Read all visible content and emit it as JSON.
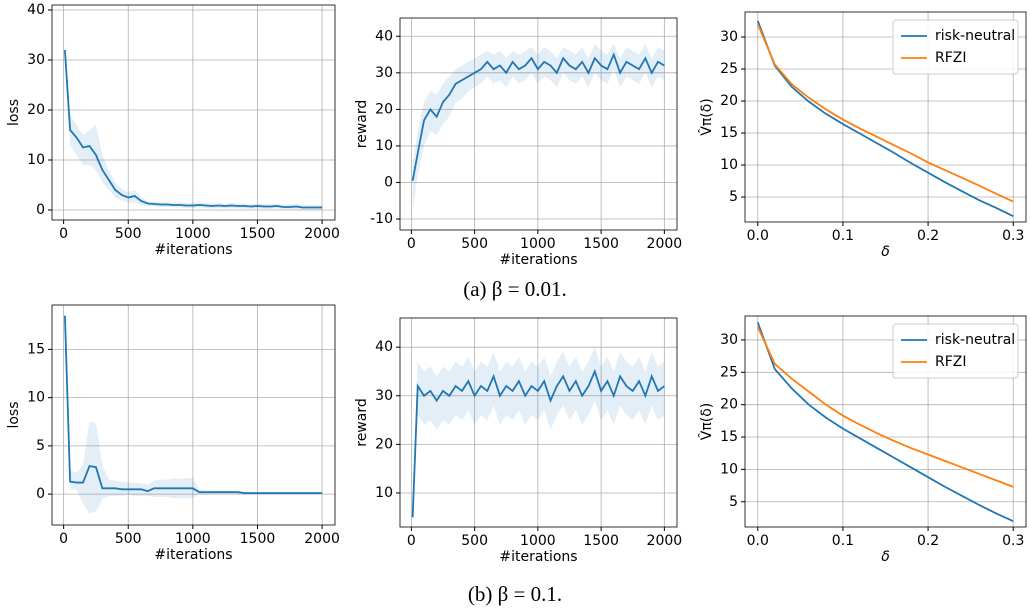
{
  "chart_data": [
    {
      "type": "line",
      "xlabel": "#iterations",
      "ylabel": "loss",
      "x": [
        10,
        50,
        100,
        150,
        200,
        250,
        300,
        350,
        400,
        450,
        500,
        550,
        600,
        650,
        700,
        750,
        800,
        850,
        900,
        950,
        1000,
        1050,
        1100,
        1150,
        1200,
        1250,
        1300,
        1350,
        1400,
        1450,
        1500,
        1550,
        1600,
        1650,
        1700,
        1750,
        1800,
        1850,
        1900,
        1950,
        2000
      ],
      "series": [
        {
          "color": "#1f77b4",
          "values": [
            32,
            16,
            14.5,
            12.5,
            12.8,
            11,
            8,
            6,
            4,
            3,
            2.5,
            2.8,
            1.8,
            1.3,
            1.2,
            1.1,
            1.1,
            1.0,
            1.0,
            0.9,
            0.9,
            1.0,
            0.9,
            0.8,
            0.9,
            0.8,
            0.9,
            0.8,
            0.8,
            0.7,
            0.8,
            0.7,
            0.7,
            0.8,
            0.6,
            0.6,
            0.7,
            0.5,
            0.5,
            0.5,
            0.5
          ],
          "lower": [
            31,
            13,
            11,
            9,
            9,
            8,
            5.5,
            4,
            2.5,
            1.8,
            1.5,
            1.5,
            1.0,
            0.8,
            0.7,
            0.6,
            0.6,
            0.5,
            0.5,
            0.4,
            0.4,
            0.5,
            0.4,
            0.3,
            0.4,
            0.3,
            0.4,
            0.3,
            0.3,
            0.2,
            0.3,
            0.2,
            0.2,
            0.3,
            0.1,
            0.1,
            0.2,
            0,
            0,
            0,
            0
          ],
          "upper": [
            33,
            19,
            17,
            15,
            16,
            17,
            11,
            8,
            5.5,
            4.2,
            3.5,
            4,
            2.6,
            1.8,
            1.7,
            1.6,
            1.6,
            1.5,
            1.5,
            1.4,
            1.4,
            1.5,
            1.4,
            1.3,
            1.4,
            1.3,
            1.4,
            1.3,
            1.3,
            1.2,
            1.3,
            1.2,
            1.2,
            1.3,
            1.1,
            1.1,
            1.2,
            1.0,
            1.0,
            1.0,
            1.0
          ]
        }
      ],
      "xlim": [
        -90,
        2100
      ],
      "ylim": [
        -2,
        41
      ],
      "xticks": [
        0,
        500,
        1000,
        1500,
        2000
      ],
      "yticks": [
        0,
        10,
        20,
        30,
        40
      ],
      "grid": true
    },
    {
      "type": "line",
      "xlabel": "#iterations",
      "ylabel": "reward",
      "x": [
        10,
        50,
        100,
        150,
        200,
        250,
        300,
        350,
        400,
        450,
        500,
        550,
        600,
        650,
        700,
        750,
        800,
        850,
        900,
        950,
        1000,
        1050,
        1100,
        1150,
        1200,
        1250,
        1300,
        1350,
        1400,
        1450,
        1500,
        1550,
        1600,
        1650,
        1700,
        1750,
        1800,
        1850,
        1900,
        1950,
        2000
      ],
      "series": [
        {
          "color": "#1f77b4",
          "values": [
            0.5,
            8,
            17,
            20,
            18,
            22,
            24,
            27,
            28,
            29,
            30,
            31,
            33,
            31,
            32,
            30,
            33,
            31,
            32,
            34,
            31,
            33,
            32,
            30,
            34,
            32,
            31,
            33,
            30,
            34,
            32,
            31,
            35,
            30,
            33,
            32,
            31,
            34,
            30,
            33,
            32
          ],
          "lower": [
            -8,
            2,
            10,
            14,
            13,
            16,
            18,
            22,
            23,
            25,
            26,
            27,
            29,
            27,
            28,
            26,
            29,
            27,
            28,
            30,
            27,
            29,
            28,
            26,
            30,
            28,
            27,
            29,
            26,
            30,
            28,
            27,
            31,
            26,
            29,
            28,
            27,
            30,
            26,
            29,
            28
          ],
          "upper": [
            5,
            14,
            22,
            25,
            24,
            27,
            29,
            31,
            32,
            33,
            34,
            35,
            36,
            35,
            36,
            34,
            36,
            35,
            36,
            37,
            35,
            37,
            36,
            34,
            37,
            36,
            35,
            37,
            34,
            38,
            36,
            35,
            38,
            34,
            37,
            36,
            35,
            38,
            34,
            37,
            36
          ]
        }
      ],
      "xlim": [
        -90,
        2100
      ],
      "ylim": [
        -13,
        45
      ],
      "xticks": [
        0,
        500,
        1000,
        1500,
        2000
      ],
      "yticks": [
        -10,
        0,
        10,
        20,
        30,
        40
      ],
      "grid": true
    },
    {
      "type": "line",
      "xlabel": "δ",
      "ylabel": "V̂π(δ)",
      "x": [
        0,
        0.02,
        0.04,
        0.06,
        0.08,
        0.1,
        0.12,
        0.14,
        0.16,
        0.18,
        0.2,
        0.22,
        0.24,
        0.26,
        0.28,
        0.3
      ],
      "series": [
        {
          "name": "risk-neutral",
          "color": "#1f77b4",
          "values": [
            32.5,
            25.5,
            22.2,
            19.9,
            18.0,
            16.4,
            14.9,
            13.4,
            11.9,
            10.3,
            8.8,
            7.3,
            5.9,
            4.5,
            3.3,
            2.0
          ]
        },
        {
          "name": "RFZI",
          "color": "#ff7f0e",
          "values": [
            32,
            25.7,
            22.6,
            20.5,
            18.7,
            17.1,
            15.7,
            14.4,
            13.1,
            11.8,
            10.4,
            9.2,
            8.0,
            6.8,
            5.5,
            4.3
          ]
        }
      ],
      "xlim": [
        -0.015,
        0.315
      ],
      "ylim": [
        1.1,
        33.9
      ],
      "xticks": [
        {
          "value": 0,
          "label": "0.0"
        },
        0.1,
        0.2,
        0.3
      ],
      "yticks": [
        5,
        10,
        15,
        20,
        25,
        30
      ],
      "grid": true,
      "legend": "upper right"
    },
    {
      "type": "line",
      "xlabel": "#iterations",
      "ylabel": "loss",
      "x": [
        10,
        50,
        100,
        150,
        200,
        250,
        300,
        350,
        400,
        450,
        500,
        550,
        600,
        650,
        700,
        750,
        800,
        850,
        900,
        950,
        1000,
        1050,
        1100,
        1150,
        1200,
        1250,
        1300,
        1350,
        1400,
        1450,
        1500,
        1550,
        1600,
        1650,
        1700,
        1750,
        1800,
        1850,
        1900,
        1950,
        2000
      ],
      "series": [
        {
          "color": "#1f77b4",
          "values": [
            18.5,
            1.3,
            1.2,
            1.2,
            2.9,
            2.8,
            0.6,
            0.6,
            0.6,
            0.5,
            0.5,
            0.5,
            0.5,
            0.3,
            0.6,
            0.6,
            0.6,
            0.6,
            0.6,
            0.6,
            0.6,
            0.2,
            0.2,
            0.2,
            0.2,
            0.2,
            0.2,
            0.2,
            0.1,
            0.1,
            0.1,
            0.1,
            0.1,
            0.1,
            0.1,
            0.1,
            0.1,
            0.1,
            0.1,
            0.1,
            0.1
          ],
          "lower": [
            18,
            0.5,
            0.5,
            -1,
            -2,
            -1.8,
            -0.5,
            -0.2,
            -0.2,
            -0.2,
            -0.1,
            -0.2,
            -0.2,
            -0.2,
            -0.3,
            -0.3,
            -0.3,
            -0.4,
            -0.4,
            -0.4,
            -0.4,
            0,
            0,
            0.05,
            0.05,
            0.05,
            0.05,
            0.05,
            0,
            0,
            0,
            0,
            0,
            0,
            0,
            0,
            0,
            0,
            0,
            0,
            0
          ],
          "upper": [
            19,
            2.5,
            2.2,
            3,
            7.5,
            7.3,
            3,
            1.5,
            1.4,
            1.3,
            1.2,
            1.2,
            1.1,
            1,
            1.4,
            1.5,
            1.5,
            1.6,
            1.6,
            1.6,
            1.7,
            0.5,
            0.4,
            0.35,
            0.35,
            0.35,
            0.35,
            0.35,
            0.25,
            0.25,
            0.25,
            0.25,
            0.25,
            0.25,
            0.25,
            0.25,
            0.25,
            0.25,
            0.25,
            0.25,
            0.25
          ]
        }
      ],
      "xlim": [
        -90,
        2100
      ],
      "ylim": [
        -3.2,
        19.6
      ],
      "xticks": [
        0,
        500,
        1000,
        1500,
        2000
      ],
      "yticks": [
        0,
        5,
        10,
        15
      ],
      "grid": true
    },
    {
      "type": "line",
      "xlabel": "#iterations",
      "ylabel": "reward",
      "x": [
        10,
        50,
        100,
        150,
        200,
        250,
        300,
        350,
        400,
        450,
        500,
        550,
        600,
        650,
        700,
        750,
        800,
        850,
        900,
        950,
        1000,
        1050,
        1100,
        1150,
        1200,
        1250,
        1300,
        1350,
        1400,
        1450,
        1500,
        1550,
        1600,
        1650,
        1700,
        1750,
        1800,
        1850,
        1900,
        1950,
        2000
      ],
      "series": [
        {
          "color": "#1f77b4",
          "values": [
            5,
            32,
            30,
            31,
            29,
            31,
            30,
            32,
            31,
            33,
            30,
            32,
            31,
            34,
            30,
            32,
            31,
            33,
            30,
            32,
            31,
            33,
            29,
            32,
            34,
            31,
            33,
            30,
            32,
            35,
            31,
            33,
            30,
            34,
            32,
            31,
            33,
            30,
            34,
            31,
            32
          ],
          "lower": [
            3.5,
            26,
            24,
            25,
            23,
            25,
            24,
            26,
            25,
            27,
            24,
            26,
            25,
            28,
            24,
            26,
            25,
            27,
            24,
            26,
            25,
            27,
            23,
            26,
            28,
            25,
            27,
            24,
            26,
            29,
            25,
            27,
            24,
            28,
            26,
            25,
            27,
            24,
            28,
            25,
            26
          ],
          "upper": [
            7,
            37,
            35,
            36,
            34,
            36,
            35,
            37,
            36,
            38,
            35,
            37,
            36,
            39,
            35,
            37,
            36,
            38,
            35,
            37,
            36,
            38,
            34,
            37,
            39,
            36,
            38,
            35,
            37,
            40,
            36,
            38,
            35,
            39,
            37,
            36,
            38,
            35,
            39,
            36,
            37
          ]
        }
      ],
      "xlim": [
        -90,
        2100
      ],
      "ylim": [
        3,
        46
      ],
      "xticks": [
        0,
        500,
        1000,
        1500,
        2000
      ],
      "yticks": [
        10,
        20,
        30,
        40
      ],
      "grid": true
    },
    {
      "type": "line",
      "xlabel": "δ",
      "ylabel": "V̂π(δ)",
      "x": [
        0,
        0.02,
        0.04,
        0.06,
        0.08,
        0.1,
        0.12,
        0.14,
        0.16,
        0.18,
        0.2,
        0.22,
        0.24,
        0.26,
        0.28,
        0.3
      ],
      "series": [
        {
          "name": "risk-neutral",
          "color": "#1f77b4",
          "values": [
            32.7,
            25.5,
            22.5,
            20.0,
            18.0,
            16.3,
            14.8,
            13.3,
            11.8,
            10.3,
            8.8,
            7.3,
            5.9,
            4.5,
            3.2,
            2.0
          ]
        },
        {
          "name": "RFZI",
          "color": "#ff7f0e",
          "values": [
            32,
            26.3,
            24.0,
            22.0,
            20.0,
            18.3,
            16.9,
            15.6,
            14.4,
            13.3,
            12.3,
            11.3,
            10.3,
            9.3,
            8.3,
            7.3
          ]
        }
      ],
      "xlim": [
        -0.015,
        0.315
      ],
      "ylim": [
        1.1,
        33.7
      ],
      "xticks": [
        {
          "value": 0,
          "label": "0.0"
        },
        0.1,
        0.2,
        0.3
      ],
      "yticks": [
        5,
        10,
        15,
        20,
        25,
        30
      ],
      "grid": true,
      "legend": "upper right"
    }
  ],
  "captions": [
    "(a) β = 0.01.",
    "(b) β = 0.1."
  ]
}
